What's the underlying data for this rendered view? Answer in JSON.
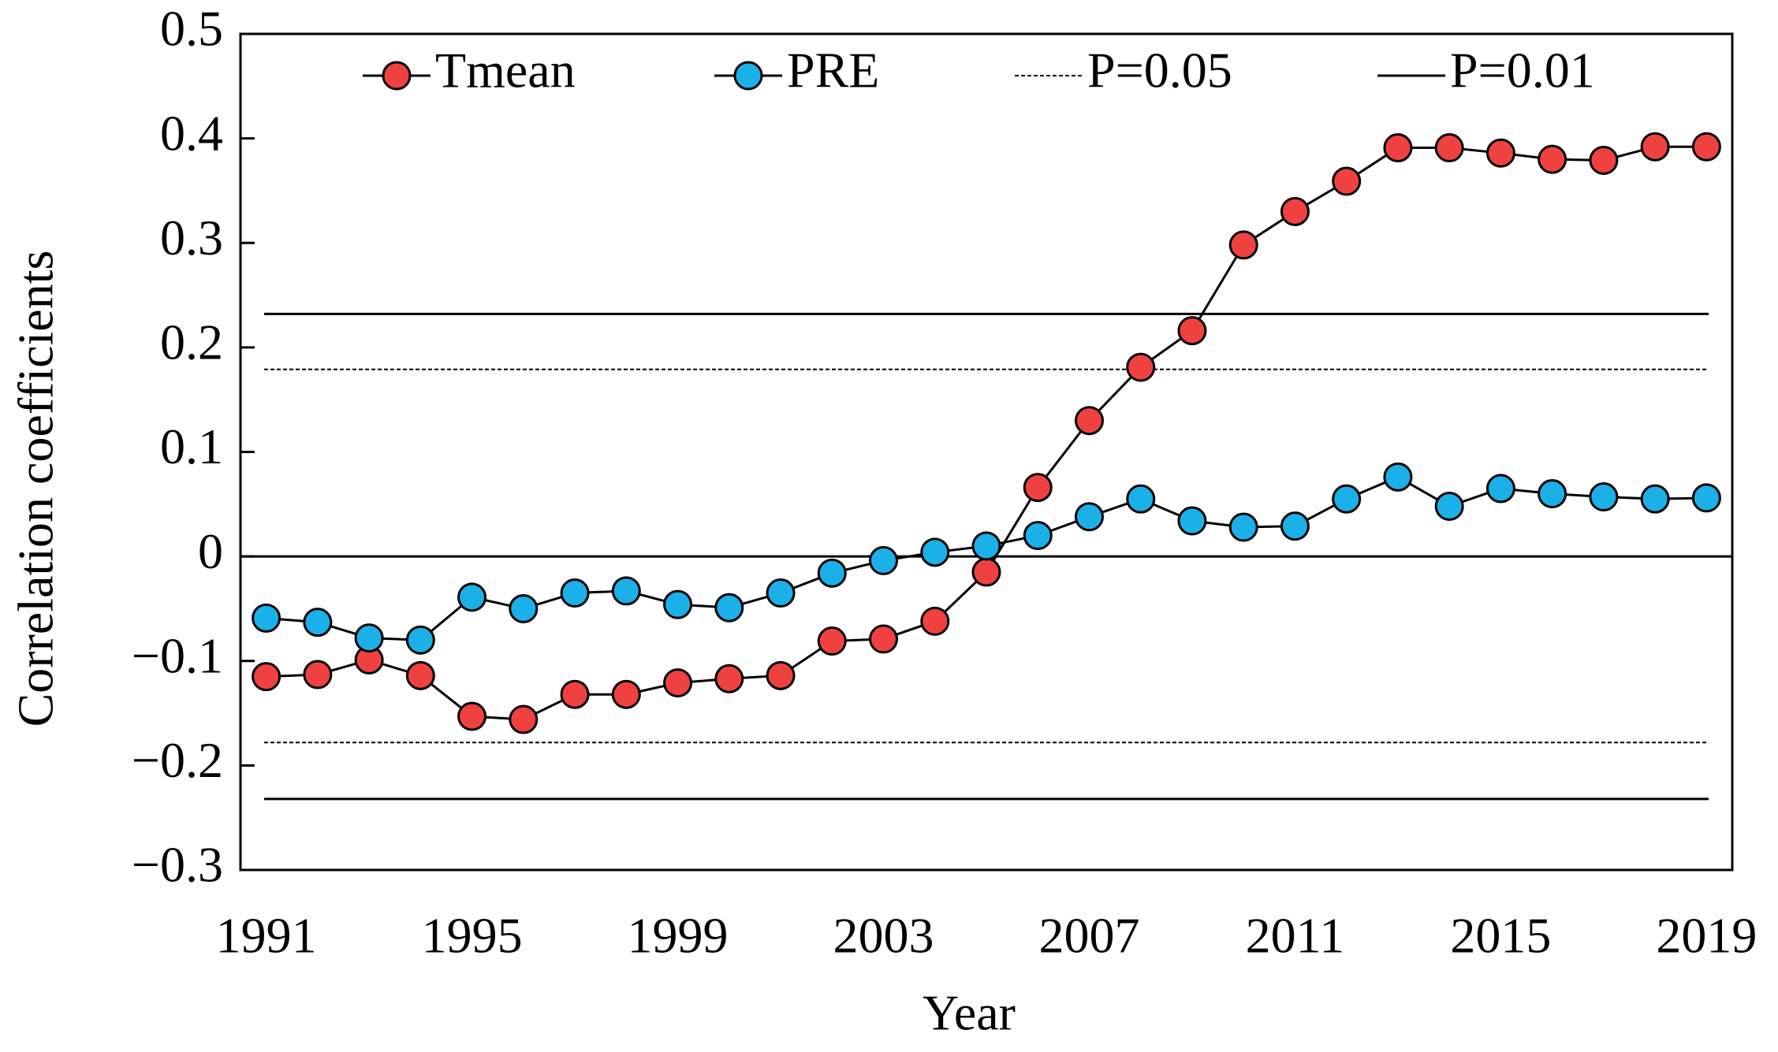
{
  "chart_data": {
    "type": "line",
    "x_label": "Year",
    "y_label": "Correlation coefficients",
    "x": [
      1991,
      1992,
      1993,
      1994,
      1995,
      1996,
      1997,
      1998,
      1999,
      2000,
      2001,
      2002,
      2003,
      2004,
      2005,
      2006,
      2007,
      2008,
      2009,
      2010,
      2011,
      2012,
      2013,
      2014,
      2015,
      2016,
      2017,
      2018,
      2019
    ],
    "series": [
      {
        "name": "Tmean",
        "color": "#f04141",
        "values": [
          -0.115,
          -0.113,
          -0.099,
          -0.114,
          -0.153,
          -0.156,
          -0.132,
          -0.132,
          -0.121,
          -0.117,
          -0.114,
          -0.081,
          -0.079,
          -0.062,
          -0.015,
          0.066,
          0.13,
          0.181,
          0.216,
          0.298,
          0.33,
          0.359,
          0.391,
          0.391,
          0.386,
          0.38,
          0.379,
          0.392,
          0.392
        ]
      },
      {
        "name": "PRE",
        "color": "#1bb0e8",
        "values": [
          -0.059,
          -0.063,
          -0.078,
          -0.08,
          -0.039,
          -0.05,
          -0.035,
          -0.033,
          -0.046,
          -0.049,
          -0.035,
          -0.016,
          -0.004,
          0.004,
          0.01,
          0.02,
          0.038,
          0.055,
          0.034,
          0.028,
          0.029,
          0.055,
          0.076,
          0.048,
          0.065,
          0.06,
          0.057,
          0.055,
          0.056
        ]
      }
    ],
    "reference_lines": [
      {
        "name": "P=0.05",
        "style": "dashed",
        "values": [
          0.179,
          -0.178
        ]
      },
      {
        "name": "P=0.01",
        "style": "solid",
        "values": [
          0.232,
          -0.232
        ]
      }
    ],
    "xlim": [
      1990.5,
      2019.5
    ],
    "xticks": [
      1991,
      1995,
      1999,
      2003,
      2007,
      2011,
      2015,
      2019
    ],
    "ylim": [
      -0.3,
      0.5
    ],
    "yticks": [
      {
        "value": -0.3,
        "label": "−0.3"
      },
      {
        "value": -0.2,
        "label": "−0.2"
      },
      {
        "value": -0.1,
        "label": "−0.1"
      },
      0,
      0.1,
      0.2,
      0.3,
      0.4,
      0.5
    ],
    "zero_line": true,
    "legend": "top"
  }
}
